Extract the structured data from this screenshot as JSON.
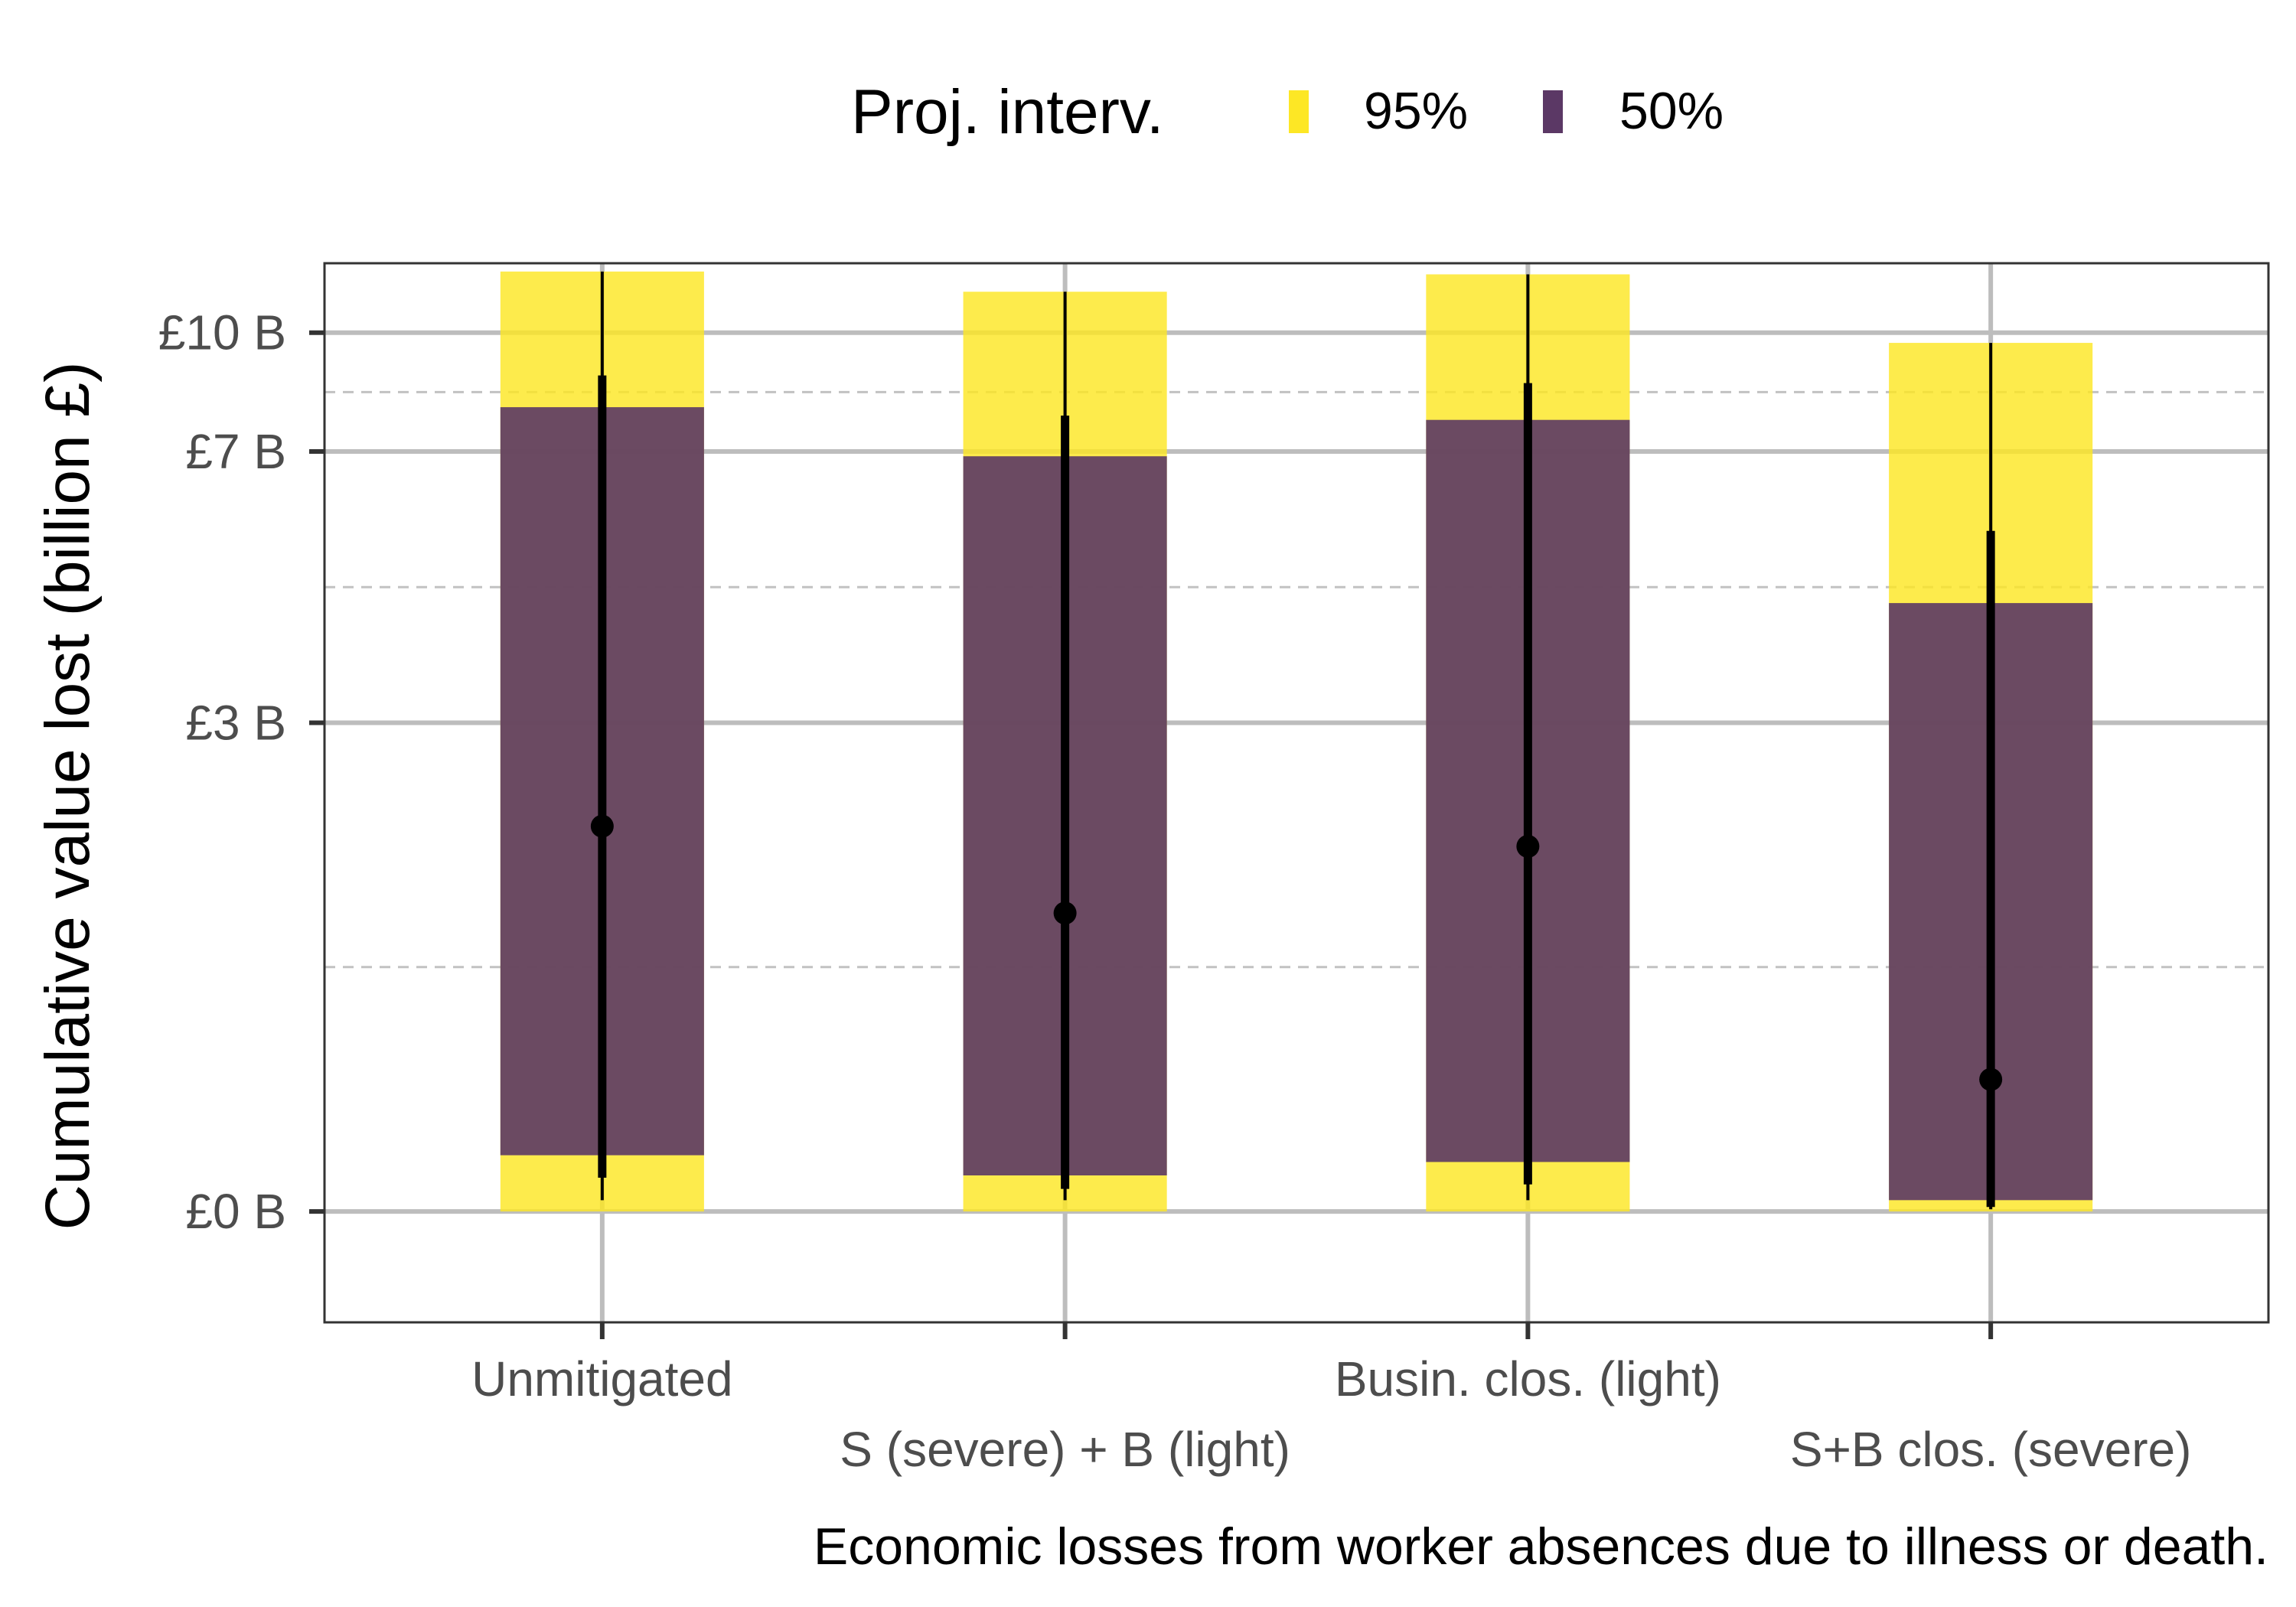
{
  "chart_data": {
    "type": "bar",
    "categories": [
      "Unmitigated",
      "S (severe) + B (light)",
      "Busin. clos. (light)",
      "S+B clos. (severe)"
    ],
    "ylabel": "Cumulative value lost (billion £)",
    "caption": "Economic losses from worker absences due to illness or death.",
    "y_ticks": [
      {
        "value": 0,
        "label": "£0 B"
      },
      {
        "value": 3,
        "label": "£3 B"
      },
      {
        "value": 7,
        "label": "£7 B"
      },
      {
        "value": 10,
        "label": "£10 B"
      }
    ],
    "y_scale": "pseudo-log (asinh-like)",
    "ylim": [
      -0.5,
      12.3
    ],
    "grid": true,
    "legend": {
      "title": "Proj. interv.",
      "placement": "top",
      "items": [
        {
          "label": "95%",
          "color": "#fde725"
        },
        {
          "label": "50%",
          "color": "#5b3865"
        }
      ]
    },
    "series": [
      {
        "name": "95%",
        "lower": [
          0.25,
          0.16,
          0.22,
          0.05
        ],
        "upper": [
          12.0,
          11.3,
          11.9,
          9.7
        ]
      },
      {
        "name": "50%",
        "lower": [
          0.25,
          0.16,
          0.22,
          0.05
        ],
        "upper": [
          8.0,
          6.9,
          7.7,
          4.4
        ]
      }
    ],
    "point_ranges": [
      {
        "median": 2.1,
        "thick": [
          0.15,
          8.8
        ],
        "thin": [
          0.05,
          12.0
        ]
      },
      {
        "median": 1.5,
        "thick": [
          0.1,
          7.8
        ],
        "thin": [
          0.05,
          11.3
        ]
      },
      {
        "median": 1.95,
        "thick": [
          0.12,
          8.6
        ],
        "thin": [
          0.05,
          11.9
        ]
      },
      {
        "median": 0.6,
        "thick": [
          0.02,
          5.5
        ],
        "thin": [
          0.01,
          9.7
        ]
      }
    ]
  }
}
